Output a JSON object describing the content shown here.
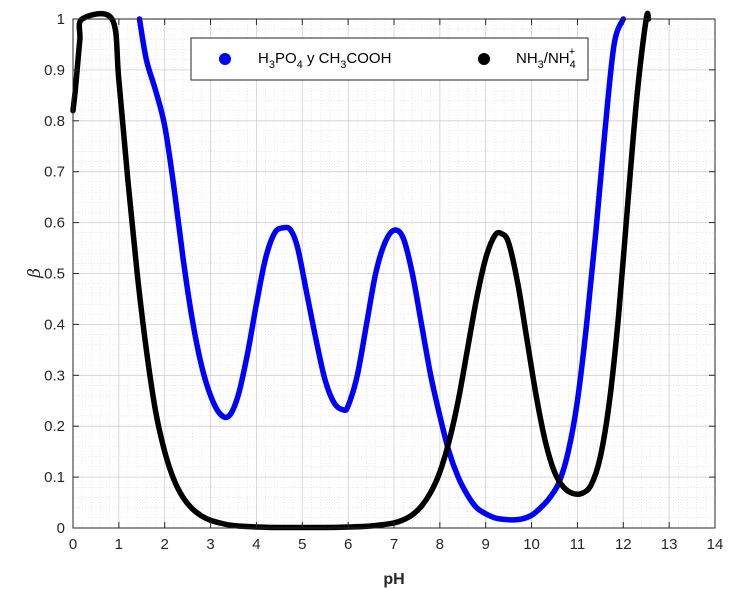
{
  "chart_data": {
    "type": "line",
    "xlabel": "pH",
    "ylabel": "β",
    "xlim": [
      0,
      14
    ],
    "ylim": [
      0,
      1
    ],
    "xticks": [
      "0",
      "1",
      "2",
      "3",
      "4",
      "5",
      "6",
      "7",
      "8",
      "9",
      "10",
      "11",
      "12",
      "13",
      "14"
    ],
    "yticks": [
      "0",
      "0.1",
      "0.2",
      "0.3",
      "0.4",
      "0.5",
      "0.6",
      "0.7",
      "0.8",
      "0.9",
      "1"
    ],
    "grid": "major and minor",
    "legend_position": "top",
    "series": [
      {
        "name": "H3PO4 y CH3COOH",
        "color": "#0000ff",
        "x": [
          1.45,
          1.6,
          1.8,
          2.0,
          2.2,
          2.4,
          2.6,
          2.8,
          3.0,
          3.2,
          3.4,
          3.6,
          3.8,
          4.0,
          4.2,
          4.4,
          4.6,
          4.75,
          4.9,
          5.1,
          5.3,
          5.5,
          5.7,
          5.9,
          6.0,
          6.2,
          6.4,
          6.6,
          6.8,
          7.0,
          7.2,
          7.4,
          7.6,
          7.8,
          8.0,
          8.2,
          8.4,
          8.6,
          8.8,
          9.0,
          9.2,
          9.4,
          9.6,
          9.8,
          10.0,
          10.2,
          10.4,
          10.6,
          10.8,
          11.0,
          11.2,
          11.4,
          11.6,
          11.8,
          12.0
        ],
        "y": [
          1.0,
          0.92,
          0.86,
          0.79,
          0.67,
          0.53,
          0.41,
          0.32,
          0.26,
          0.225,
          0.22,
          0.26,
          0.34,
          0.44,
          0.53,
          0.58,
          0.59,
          0.585,
          0.55,
          0.46,
          0.37,
          0.29,
          0.245,
          0.232,
          0.24,
          0.3,
          0.4,
          0.5,
          0.56,
          0.585,
          0.57,
          0.5,
          0.4,
          0.3,
          0.22,
          0.15,
          0.1,
          0.065,
          0.04,
          0.028,
          0.02,
          0.017,
          0.016,
          0.018,
          0.025,
          0.04,
          0.06,
          0.09,
          0.15,
          0.25,
          0.4,
          0.58,
          0.78,
          0.95,
          1.0
        ]
      },
      {
        "name": "NH3/NH4+",
        "color": "#000000",
        "x": [
          0.0,
          0.05,
          0.1,
          0.15,
          0.2,
          0.85,
          1.0,
          1.2,
          1.4,
          1.6,
          1.8,
          2.0,
          2.2,
          2.4,
          2.6,
          2.8,
          3.0,
          3.2,
          3.4,
          3.6,
          3.8,
          4.0,
          4.5,
          5.0,
          5.5,
          6.0,
          6.5,
          7.0,
          7.2,
          7.4,
          7.6,
          7.8,
          8.0,
          8.2,
          8.4,
          8.6,
          8.8,
          9.0,
          9.2,
          9.35,
          9.5,
          9.7,
          9.9,
          10.1,
          10.3,
          10.5,
          10.7,
          10.9,
          11.1,
          11.3,
          11.5,
          11.7,
          11.9,
          12.1,
          12.3,
          12.5,
          12.55
        ],
        "y": [
          0.82,
          0.86,
          0.91,
          0.96,
          1.0,
          1.0,
          0.88,
          0.68,
          0.5,
          0.35,
          0.23,
          0.15,
          0.095,
          0.06,
          0.038,
          0.024,
          0.015,
          0.01,
          0.006,
          0.004,
          0.003,
          0.002,
          0.001,
          0.001,
          0.001,
          0.002,
          0.004,
          0.01,
          0.016,
          0.026,
          0.043,
          0.07,
          0.11,
          0.17,
          0.25,
          0.35,
          0.45,
          0.53,
          0.575,
          0.578,
          0.56,
          0.48,
          0.37,
          0.26,
          0.17,
          0.11,
          0.08,
          0.068,
          0.068,
          0.085,
          0.14,
          0.25,
          0.42,
          0.64,
          0.85,
          1.0,
          1.0
        ]
      }
    ]
  },
  "legend": {
    "entry1": {
      "parts": [
        "H",
        "3",
        "PO",
        "4",
        " y CH",
        "3",
        "COOH"
      ]
    },
    "entry2": {
      "parts": [
        "NH",
        "3",
        "/NH",
        "4",
        "+"
      ]
    }
  }
}
